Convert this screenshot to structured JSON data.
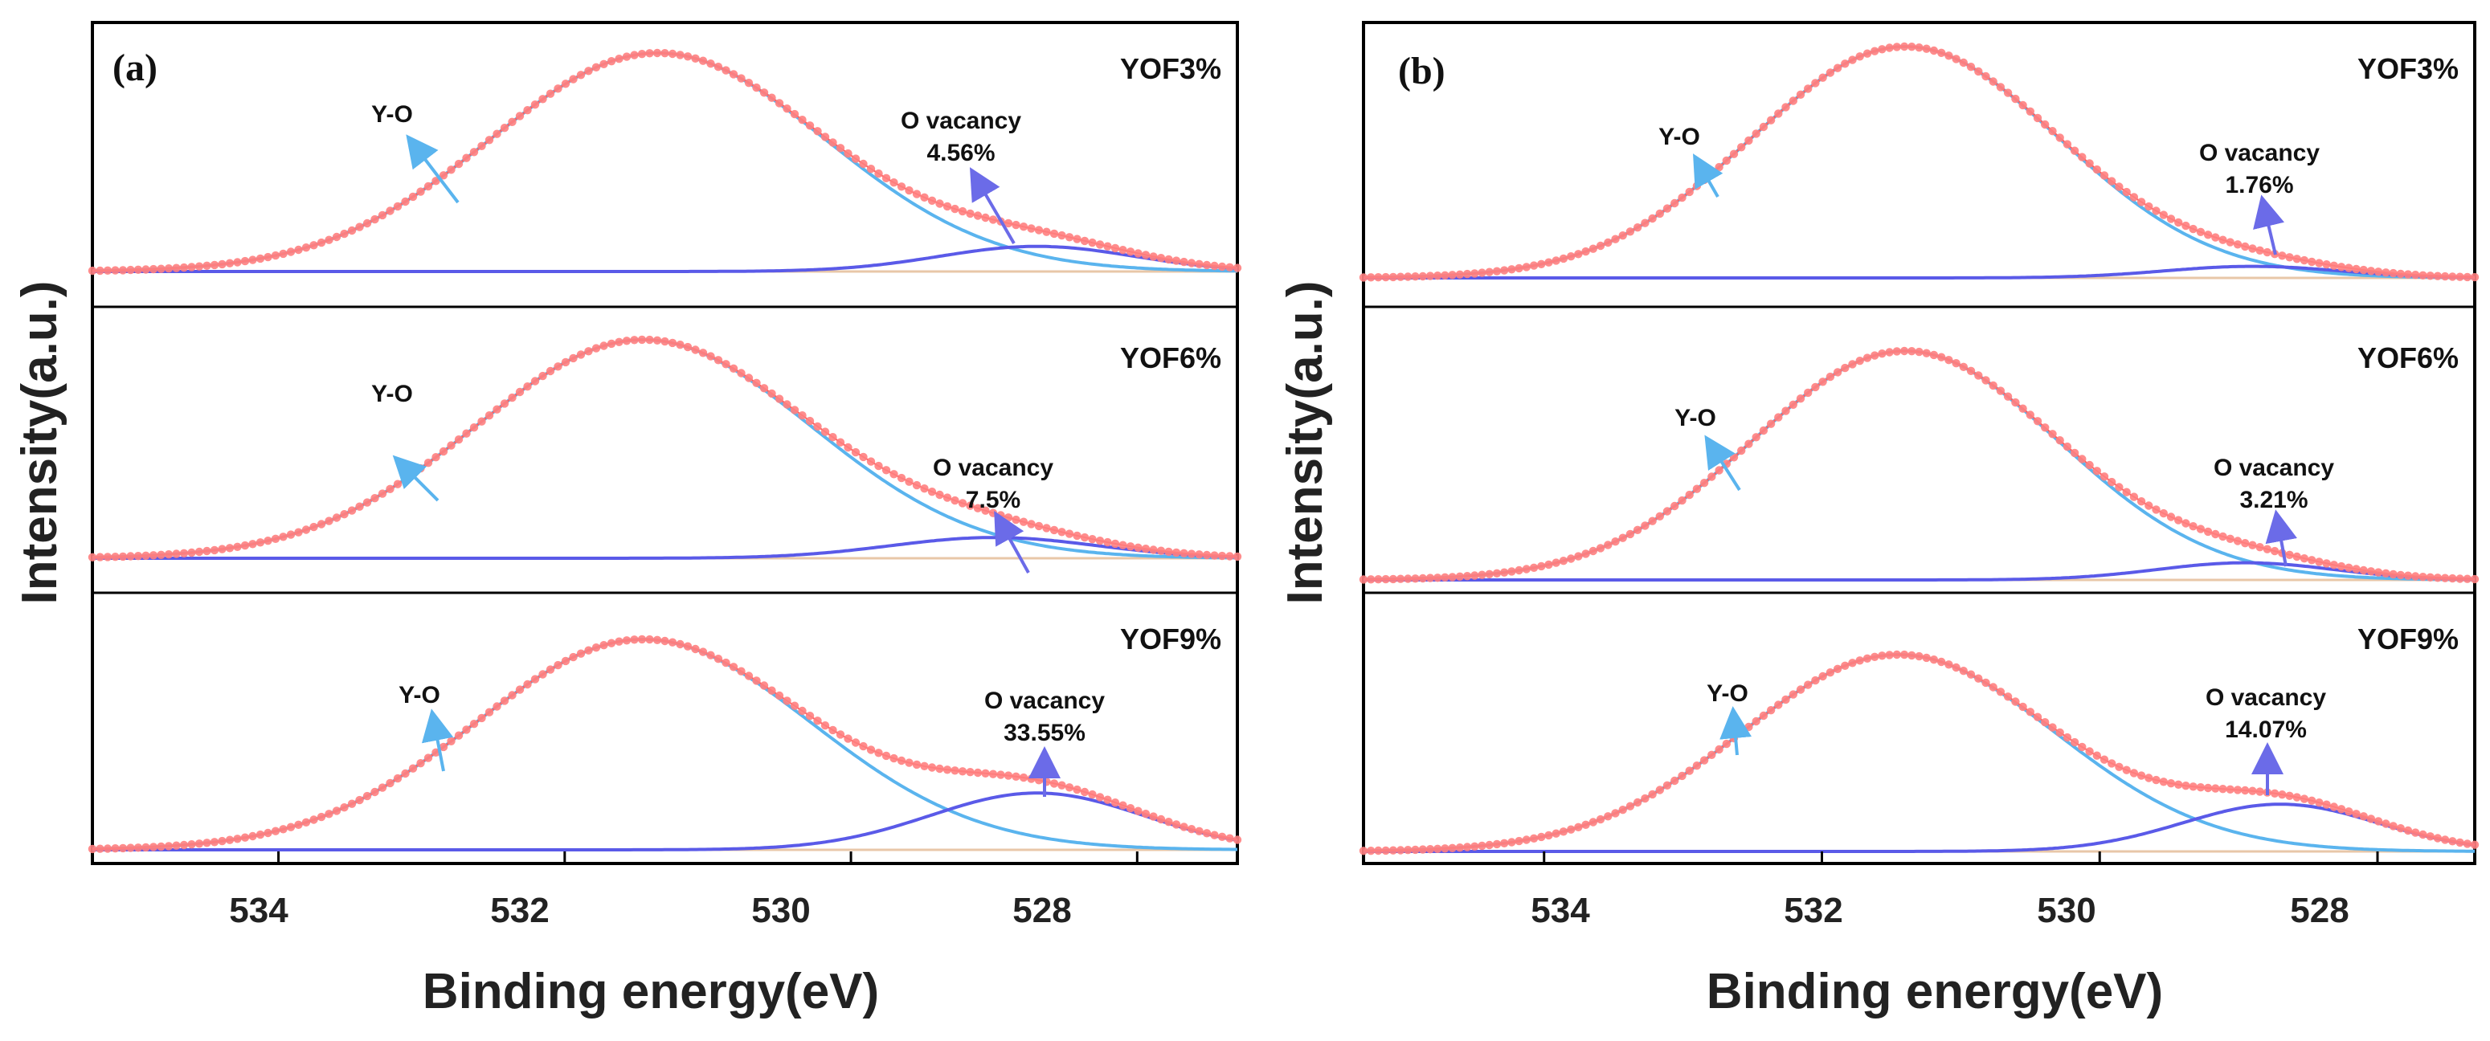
{
  "figure": {
    "panels": [
      {
        "label": "(a)",
        "xlabel": "Binding energy(eV)",
        "ylabel": "Intensity(a.u.)"
      },
      {
        "label": "(b)",
        "xlabel": "Binding energy(eV)",
        "ylabel": "Intensity(a.u.)"
      }
    ]
  },
  "chart_data": [
    {
      "type": "line",
      "title": "(a)",
      "xlabel": "Binding energy(eV)",
      "ylabel": "Intensity(a.u.)",
      "xlim": [
        535.3,
        527.3
      ],
      "x_reversed": true,
      "xticks": [
        534,
        532,
        530,
        528
      ],
      "xtick_labels": [
        "534",
        "532",
        "530",
        "528"
      ],
      "colors": {
        "raw": "#ff7f7f",
        "envelope": "#ff5a5a",
        "yo": "#5ab4ee",
        "ov": "#5a5ae8",
        "baseline": "#e8c7a8",
        "arrow_yo": "#5ab4ee",
        "arrow_ov": "#6b6be8"
      },
      "subplots": [
        {
          "sample": "YOF3%",
          "peaks": [
            {
              "name": "Y-O",
              "center": 531.35,
              "fwhm": 2.75,
              "height": 1.0
            },
            {
              "name": "O vacancy",
              "center": 528.7,
              "fwhm": 1.6,
              "height": 0.115
            }
          ],
          "annotations": [
            {
              "text": "Y-O"
            },
            {
              "text": "O vacancy",
              "value": "4.56%"
            }
          ]
        },
        {
          "sample": "YOF6%",
          "peaks": [
            {
              "name": "Y-O",
              "center": 531.45,
              "fwhm": 2.75,
              "height": 1.0
            },
            {
              "name": "O vacancy",
              "center": 529.0,
              "fwhm": 1.7,
              "height": 0.095
            }
          ],
          "annotations": [
            {
              "text": "Y-O"
            },
            {
              "text": "O vacancy",
              "value": "7.5%"
            }
          ]
        },
        {
          "sample": "YOF9%",
          "peaks": [
            {
              "name": "Y-O",
              "center": 531.45,
              "fwhm": 2.75,
              "height": 1.0
            },
            {
              "name": "O vacancy",
              "center": 528.7,
              "fwhm": 1.75,
              "height": 0.27
            }
          ],
          "annotations": [
            {
              "text": "Y-O"
            },
            {
              "text": "O vacancy",
              "value": "33.55%"
            }
          ]
        }
      ]
    },
    {
      "type": "line",
      "title": "(b)",
      "xlabel": "Binding energy(eV)",
      "ylabel": "Intensity(a.u.)",
      "xlim": [
        535.3,
        527.3
      ],
      "x_reversed": true,
      "xticks": [
        534,
        532,
        530,
        528
      ],
      "xtick_labels": [
        "534",
        "532",
        "530",
        "528"
      ],
      "colors": {
        "raw": "#ff7f7f",
        "envelope": "#ff5a5a",
        "yo": "#5ab4ee",
        "ov": "#5a5ae8",
        "baseline": "#e8c7a8",
        "arrow_yo": "#5ab4ee",
        "arrow_ov": "#6b6be8"
      },
      "subplots": [
        {
          "sample": "YOF3%",
          "peaks": [
            {
              "name": "Y-O",
              "center": 531.4,
              "fwhm": 2.6,
              "height": 1.0
            },
            {
              "name": "O vacancy",
              "center": 528.9,
              "fwhm": 1.5,
              "height": 0.05
            }
          ],
          "annotations": [
            {
              "text": "Y-O"
            },
            {
              "text": "O vacancy",
              "value": "1.76%"
            }
          ]
        },
        {
          "sample": "YOF6%",
          "peaks": [
            {
              "name": "Y-O",
              "center": 531.4,
              "fwhm": 2.6,
              "height": 1.0
            },
            {
              "name": "O vacancy",
              "center": 528.95,
              "fwhm": 1.5,
              "height": 0.075
            }
          ],
          "annotations": [
            {
              "text": "Y-O"
            },
            {
              "text": "O vacancy",
              "value": "3.21%"
            }
          ]
        },
        {
          "sample": "YOF9%",
          "peaks": [
            {
              "name": "Y-O",
              "center": 531.45,
              "fwhm": 2.65,
              "height": 1.0
            },
            {
              "name": "O vacancy",
              "center": 528.7,
              "fwhm": 1.65,
              "height": 0.24
            }
          ],
          "annotations": [
            {
              "text": "Y-O"
            },
            {
              "text": "O vacancy",
              "value": "14.07%"
            }
          ]
        }
      ]
    }
  ]
}
